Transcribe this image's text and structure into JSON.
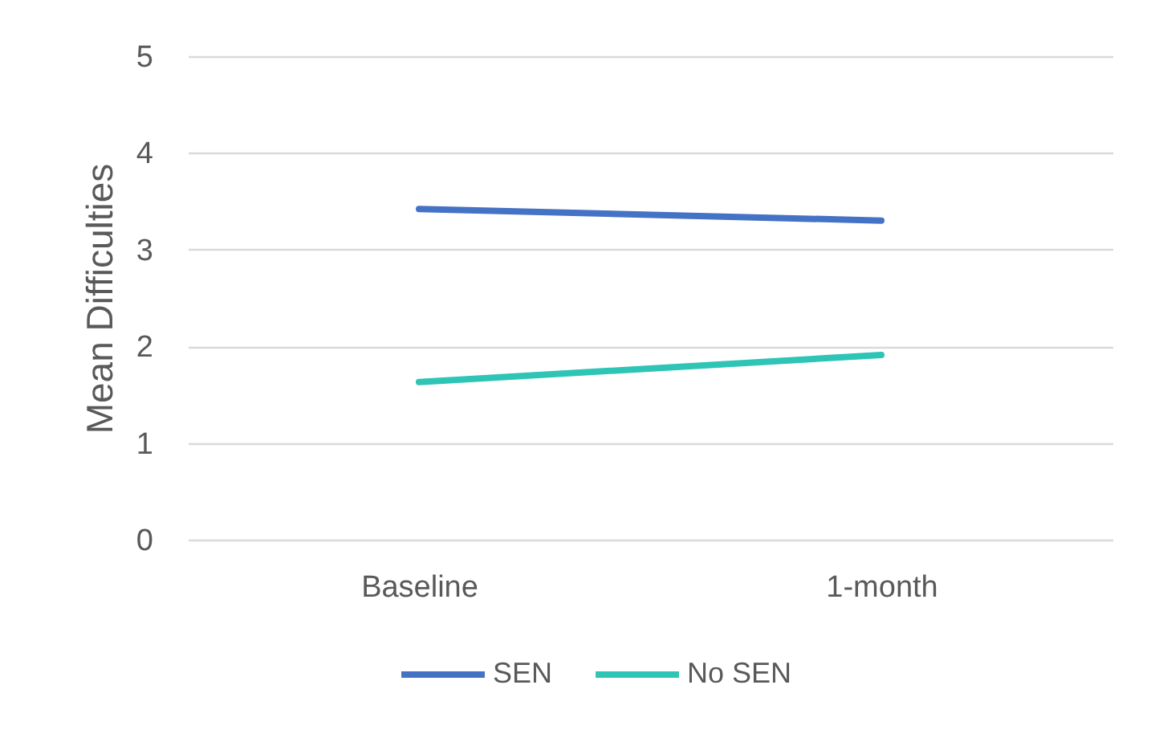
{
  "chart_data": {
    "type": "line",
    "ylabel": "Mean Difficulties",
    "categories": [
      "Baseline",
      "1-month"
    ],
    "series": [
      {
        "name": "SEN",
        "color": "#4472c4",
        "values": [
          3.42,
          3.3
        ]
      },
      {
        "name": "No SEN",
        "color": "#2ec4b6",
        "values": [
          1.63,
          1.91
        ]
      }
    ],
    "ylim": [
      0,
      5
    ],
    "yticks": [
      0,
      1,
      2,
      3,
      4,
      5
    ],
    "grid": "y",
    "legend": "bottom",
    "line_style": "solid"
  }
}
